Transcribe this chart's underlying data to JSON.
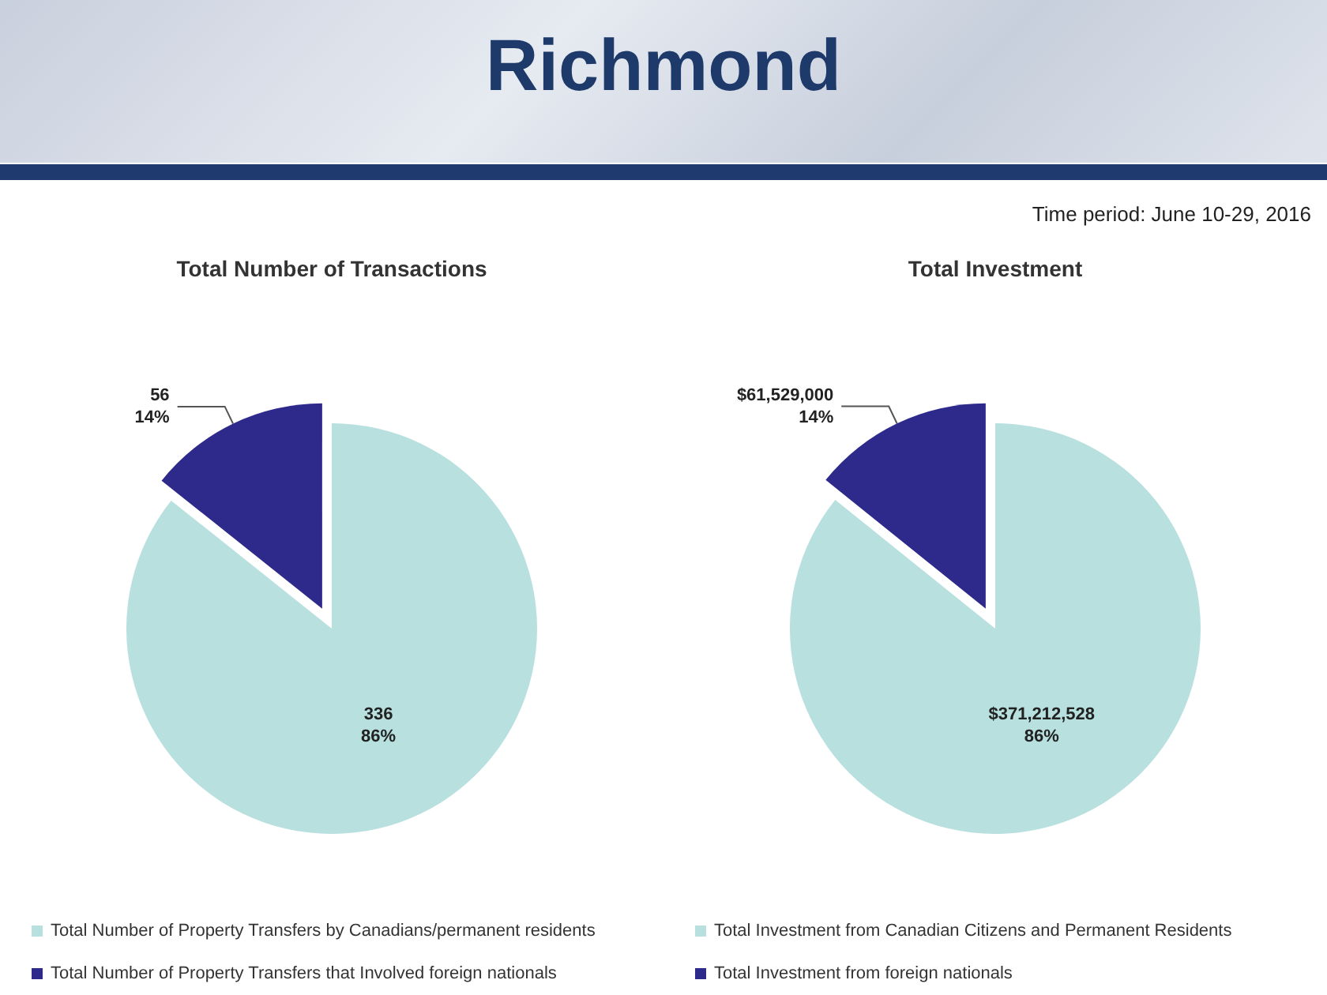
{
  "chart_data": [
    {
      "type": "pie",
      "title": "Total Number of Transactions",
      "annotations": [
        "Richmond"
      ],
      "categories": [
        "Total Number of Property Transfers by Canadians/permanent residents",
        "Total Number of Property Transfers that Involved foreign nationals"
      ],
      "values": [
        336,
        56
      ],
      "colors": [
        "#b7e0df",
        "#2e2a8c"
      ],
      "value_labels": [
        "336\n86%",
        "56\n14%"
      ],
      "legend": "bottom"
    },
    {
      "type": "pie",
      "title": "Total Investment",
      "annotations": [
        "Time period: June 10-29, 2016"
      ],
      "categories": [
        "Total Investment from Canadian Citizens and Permanent Residents",
        "Total Investment from foreign nationals"
      ],
      "values": [
        371212528,
        61529000
      ],
      "colors": [
        "#b7e0df",
        "#2e2a8c"
      ],
      "value_labels": [
        "$371,212,528\n86%",
        "$61,529,000\n14%"
      ],
      "legend": "bottom"
    }
  ]
}
